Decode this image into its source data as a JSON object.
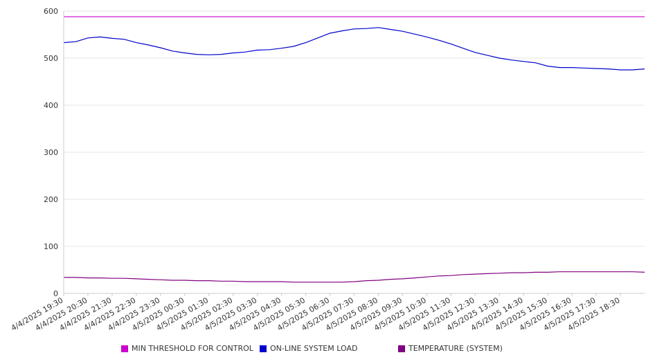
{
  "chart_data": {
    "type": "line",
    "title": "",
    "xlabel": "",
    "ylabel": "",
    "ylim": [
      0,
      600
    ],
    "yticks": [
      0,
      100,
      200,
      300,
      400,
      500,
      600
    ],
    "grid": true,
    "legend_position": "bottom",
    "x_tick_labels": [
      "4/4/2025 19:30",
      "4/4/2025 20:30",
      "4/4/2025 21:30",
      "4/4/2025 22:30",
      "4/4/2025 23:30",
      "4/5/2025 00:30",
      "4/5/2025 01:30",
      "4/5/2025 02:30",
      "4/5/2025 03:30",
      "4/5/2025 04:30",
      "4/5/2025 05:30",
      "4/5/2025 06:30",
      "4/5/2025 07:30",
      "4/5/2025 08:30",
      "4/5/2025 09:30",
      "4/5/2025 10:30",
      "4/5/2025 11:30",
      "4/5/2025 12:30",
      "4/5/2025 13:30",
      "4/5/2025 14:30",
      "4/5/2025 15:30",
      "4/5/2025 16:30",
      "4/5/2025 17:30",
      "4/5/2025 18:30"
    ],
    "x": [
      "4/4/2025 19:30",
      "4/4/2025 20:00",
      "4/4/2025 20:30",
      "4/4/2025 21:00",
      "4/4/2025 21:30",
      "4/4/2025 22:00",
      "4/4/2025 22:30",
      "4/4/2025 23:00",
      "4/4/2025 23:30",
      "4/5/2025 00:00",
      "4/5/2025 00:30",
      "4/5/2025 01:00",
      "4/5/2025 01:30",
      "4/5/2025 02:00",
      "4/5/2025 02:30",
      "4/5/2025 03:00",
      "4/5/2025 03:30",
      "4/5/2025 04:00",
      "4/5/2025 04:30",
      "4/5/2025 05:00",
      "4/5/2025 05:30",
      "4/5/2025 06:00",
      "4/5/2025 06:30",
      "4/5/2025 07:00",
      "4/5/2025 07:30",
      "4/5/2025 08:00",
      "4/5/2025 08:30",
      "4/5/2025 09:00",
      "4/5/2025 09:30",
      "4/5/2025 10:00",
      "4/5/2025 10:30",
      "4/5/2025 11:00",
      "4/5/2025 11:30",
      "4/5/2025 12:00",
      "4/5/2025 12:30",
      "4/5/2025 13:00",
      "4/5/2025 13:30",
      "4/5/2025 14:00",
      "4/5/2025 14:30",
      "4/5/2025 15:00",
      "4/5/2025 15:30",
      "4/5/2025 16:00",
      "4/5/2025 16:30",
      "4/5/2025 17:00",
      "4/5/2025 17:30",
      "4/5/2025 18:00",
      "4/5/2025 18:30",
      "4/5/2025 19:00",
      "4/5/2025 19:30"
    ],
    "series": [
      {
        "name": "MIN THRESHOLD FOR CONTROL",
        "color": "#cc00cc",
        "values": [
          588,
          588,
          588,
          588,
          588,
          588,
          588,
          588,
          588,
          588,
          588,
          588,
          588,
          588,
          588,
          588,
          588,
          588,
          588,
          588,
          588,
          588,
          588,
          588,
          588,
          588,
          588,
          588,
          588,
          588,
          588,
          588,
          588,
          588,
          588,
          588,
          588,
          588,
          588,
          588,
          588,
          588,
          588,
          588,
          588,
          588,
          588,
          588,
          588
        ]
      },
      {
        "name": "ON-LINE SYSTEM LOAD",
        "color": "#0000cc",
        "values": [
          533,
          535,
          543,
          545,
          542,
          540,
          533,
          528,
          522,
          515,
          511,
          508,
          507,
          508,
          511,
          513,
          517,
          518,
          521,
          525,
          533,
          543,
          553,
          558,
          562,
          563,
          565,
          561,
          557,
          551,
          545,
          538,
          530,
          521,
          512,
          506,
          500,
          496,
          493,
          490,
          483,
          480,
          480,
          479,
          478,
          477,
          475,
          475,
          477
        ]
      },
      {
        "name": "TEMPERATURE (SYSTEM)",
        "color": "#800080",
        "values": [
          34,
          34,
          33,
          33,
          32,
          32,
          31,
          30,
          29,
          28,
          28,
          27,
          27,
          26,
          26,
          25,
          25,
          25,
          25,
          24,
          24,
          24,
          24,
          24,
          25,
          27,
          28,
          30,
          31,
          33,
          35,
          37,
          38,
          40,
          41,
          42,
          43,
          44,
          44,
          45,
          45,
          46,
          46,
          46,
          46,
          46,
          46,
          46,
          45
        ]
      }
    ]
  }
}
